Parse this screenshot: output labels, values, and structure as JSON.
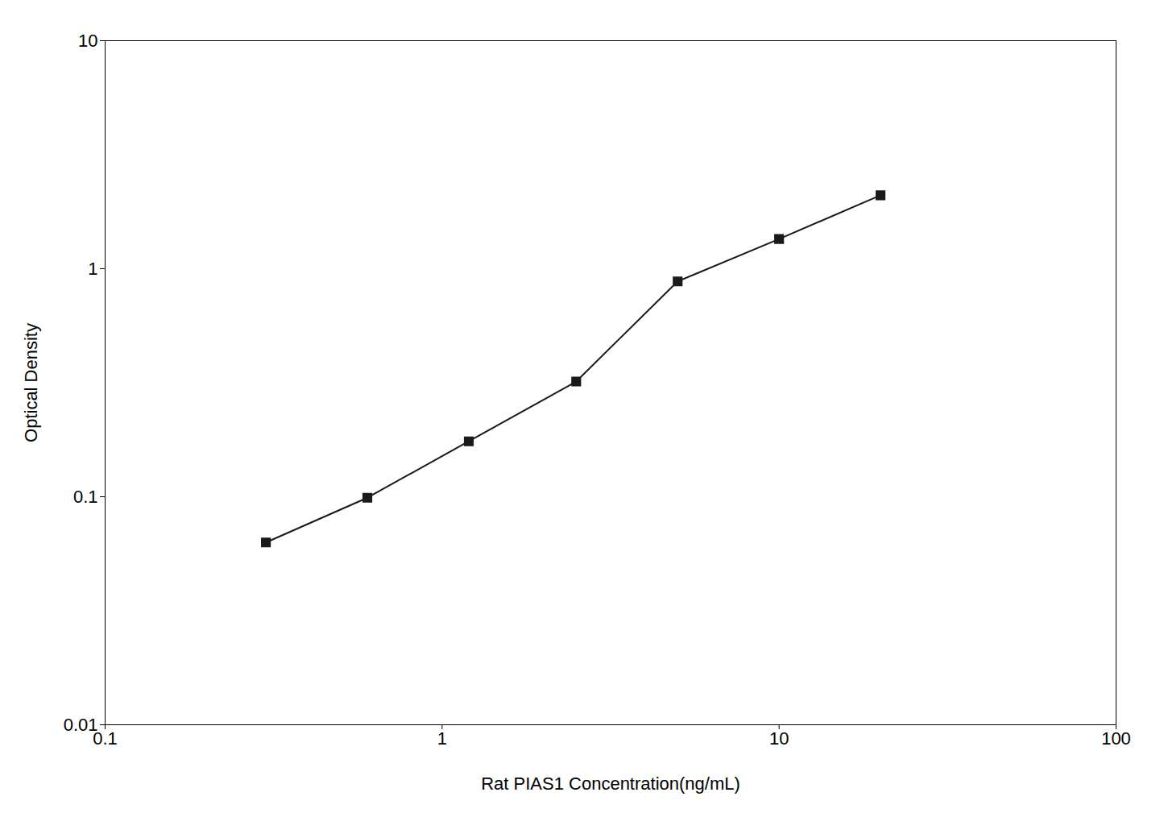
{
  "chart_data": {
    "type": "line",
    "x": [
      0.3,
      0.6,
      1.2,
      2.5,
      5.0,
      10.0,
      20.0
    ],
    "values": [
      0.063,
      0.099,
      0.175,
      0.32,
      0.88,
      1.35,
      2.1
    ],
    "xlabel": "Rat PIAS1 Concentration(ng/mL)",
    "ylabel": "Optical Density",
    "xlim": [
      0.1,
      100
    ],
    "ylim": [
      0.01,
      10
    ],
    "xticks": [
      0.1,
      1,
      10,
      100
    ],
    "yticks": [
      0.01,
      0.1,
      1,
      10
    ],
    "log": true,
    "grid": false,
    "color": "#1a1a1a",
    "marker": "square"
  }
}
